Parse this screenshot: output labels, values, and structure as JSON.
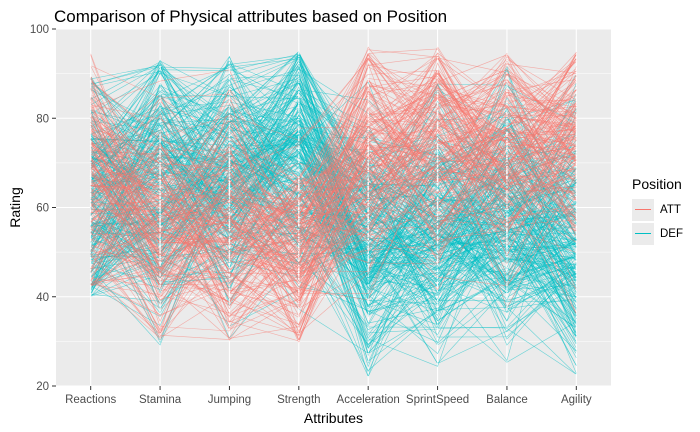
{
  "chart_data": {
    "type": "line",
    "subtype": "parallel-coordinates",
    "title": "Comparison of Physical attributes based on Position",
    "xlabel": "Attributes",
    "ylabel": "Rating",
    "ylim": [
      20,
      100
    ],
    "yticks": [
      20,
      40,
      60,
      80,
      100
    ],
    "categories": [
      "Reactions",
      "Stamina",
      "Jumping",
      "Strength",
      "Acceleration",
      "SprintSpeed",
      "Balance",
      "Agility"
    ],
    "grid": true,
    "legend": {
      "title": "Position",
      "placement": "right",
      "entries": [
        {
          "name": "ATT",
          "color": "#f8766d"
        },
        {
          "name": "DEF",
          "color": "#00bfc4"
        }
      ]
    },
    "series": [
      {
        "name": "ATT",
        "color": "#f8766d",
        "approx_range": {
          "Reactions": [
            42,
            95
          ],
          "Stamina": [
            30,
            93
          ],
          "Jumping": [
            30,
            94
          ],
          "Strength": [
            29,
            96
          ],
          "Acceleration": [
            26,
            96
          ],
          "SprintSpeed": [
            27,
            96
          ],
          "Balance": [
            24,
            95
          ],
          "Agility": [
            25,
            95
          ]
        },
        "approx_mean": {
          "Reactions": 65,
          "Stamina": 58,
          "Jumping": 58,
          "Strength": 50,
          "Acceleration": 74,
          "SprintSpeed": 74,
          "Balance": 72,
          "Agility": 75
        }
      },
      {
        "name": "DEF",
        "color": "#00bfc4",
        "approx_range": {
          "Reactions": [
            40,
            90
          ],
          "Stamina": [
            27,
            93
          ],
          "Jumping": [
            28,
            94
          ],
          "Strength": [
            29,
            95
          ],
          "Acceleration": [
            22,
            94
          ],
          "SprintSpeed": [
            24,
            95
          ],
          "Balance": [
            25,
            92
          ],
          "Agility": [
            22,
            93
          ]
        },
        "approx_mean": {
          "Reactions": 62,
          "Stamina": 66,
          "Jumping": 66,
          "Strength": 72,
          "Acceleration": 52,
          "SprintSpeed": 55,
          "Balance": 56,
          "Agility": 52
        }
      }
    ]
  }
}
